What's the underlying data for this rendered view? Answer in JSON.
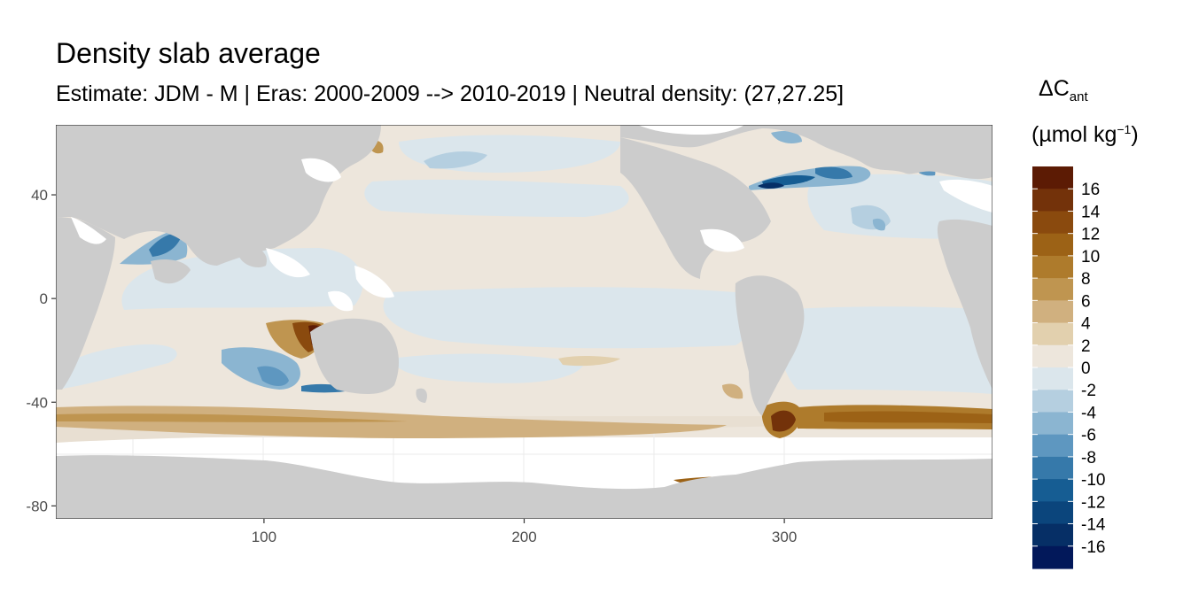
{
  "title": "Density slab average",
  "subtitle": "Estimate: JDM - M | Eras: 2000-2009 --> 2010-2019 | Neutral density: (27,27.25]",
  "chart_data": {
    "type": "heatmap",
    "title": "Density slab average",
    "subtitle": "Estimate: JDM - M | Eras: 2000-2009 --> 2010-2019 | Neutral density: (27,27.25]",
    "xlabel": "",
    "ylabel": "",
    "xlim": [
      20,
      380
    ],
    "ylim": [
      -85,
      67
    ],
    "x_ticks": [
      100,
      200,
      300
    ],
    "y_ticks": [
      40,
      0,
      -40,
      -80
    ],
    "grid": true,
    "legend": {
      "title_main": "ΔC",
      "title_sub": "ant",
      "unit_prefix": "(µmol kg",
      "unit_sup": "−1",
      "unit_suffix": ")",
      "placement": "right",
      "labels": [
        "16",
        "14",
        "12",
        "10",
        "8",
        "6",
        "4",
        "2",
        "0",
        "-2",
        "-4",
        "-6",
        "-8",
        "-10",
        "-12",
        "-14",
        "-16"
      ],
      "colors": [
        "#5c1b04",
        "#73320a",
        "#8a4a0e",
        "#9c6216",
        "#ae7b2c",
        "#bf9550",
        "#d0b07f",
        "#e2d0ae",
        "#ede6dc",
        "#dbe6ec",
        "#b5cfe0",
        "#8bb5d1",
        "#5e97c0",
        "#3679aa",
        "#165d93",
        "#0b457c",
        "#062f66",
        "#02185a"
      ]
    },
    "features": [
      {
        "kind": "Arabian Sea negative anomaly",
        "lon": [
          55,
          70
        ],
        "lat": [
          10,
          25
        ],
        "value": -10
      },
      {
        "kind": "Eastern Indian Ocean positive anomaly",
        "lon": [
          110,
          128
        ],
        "lat": [
          -30,
          -10
        ],
        "value": 14
      },
      {
        "kind": "Southeast Indian Ocean negative anomaly",
        "lon": [
          100,
          130
        ],
        "lat": [
          -38,
          -20
        ],
        "value": -6
      },
      {
        "kind": "Southern Indian Ocean positive band",
        "lon": [
          20,
          170
        ],
        "lat": [
          -52,
          -45
        ],
        "value": 6
      },
      {
        "kind": "South Atlantic positive anomaly",
        "lon": [
          295,
          310
        ],
        "lat": [
          -55,
          -42
        ],
        "value": 14
      },
      {
        "kind": "South Atlantic positive band",
        "lon": [
          300,
          380
        ],
        "lat": [
          -50,
          -43
        ],
        "value": 10
      },
      {
        "kind": "Antarctic coastal positive anomaly",
        "lon": [
          260,
          290
        ],
        "lat": [
          -73,
          -69
        ],
        "value": 16
      },
      {
        "kind": "North Atlantic negative anomaly",
        "lon": [
          280,
          330
        ],
        "lat": [
          38,
          50
        ],
        "value": -12
      },
      {
        "kind": "North Pacific negative anomaly",
        "lon": [
          155,
          195
        ],
        "lat": [
          50,
          58
        ],
        "value": -4
      },
      {
        "kind": "Western North Atlantic negative patch",
        "lon": [
          315,
          333
        ],
        "lat": [
          25,
          35
        ],
        "value": -4
      }
    ]
  }
}
